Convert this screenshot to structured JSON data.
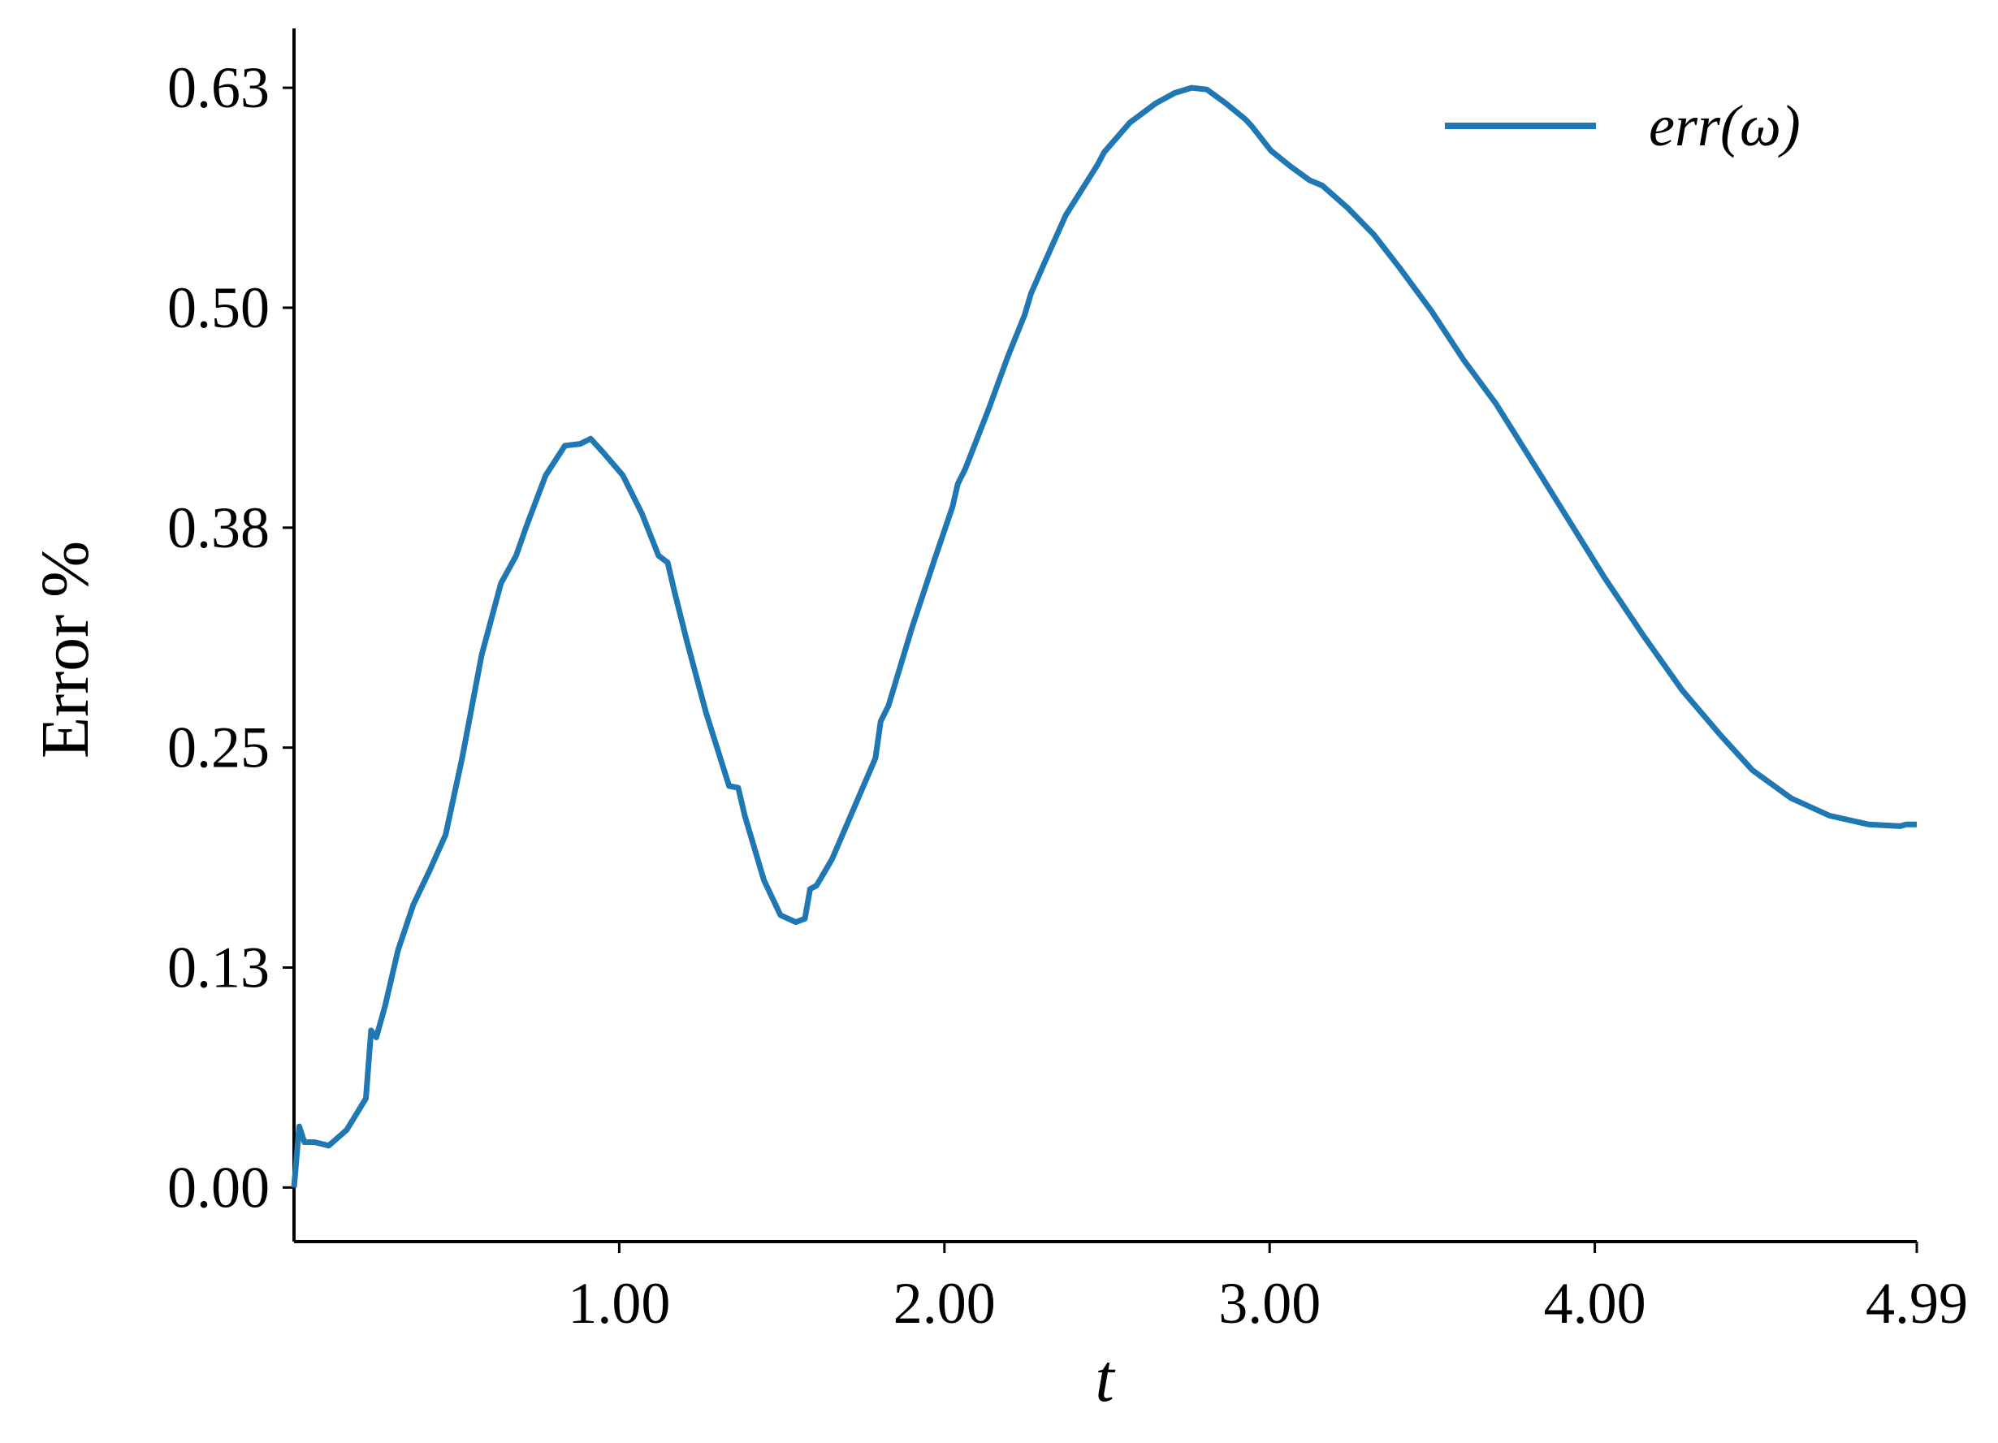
{
  "chart_data": {
    "type": "line",
    "x_label": "t",
    "y_label": "Error %",
    "x": [
      0,
      0.016,
      0.032,
      0.063,
      0.107,
      0.162,
      0.221,
      0.237,
      0.253,
      0.28,
      0.32,
      0.367,
      0.418,
      0.466,
      0.517,
      0.577,
      0.636,
      0.683,
      0.715,
      0.774,
      0.833,
      0.88,
      0.912,
      0.951,
      1.011,
      1.07,
      1.121,
      1.149,
      1.169,
      1.208,
      1.267,
      1.338,
      1.366,
      1.386,
      1.445,
      1.496,
      1.543,
      1.571,
      1.587,
      1.607,
      1.654,
      1.721,
      1.788,
      1.804,
      1.828,
      1.899,
      1.97,
      2.025,
      2.041,
      2.065,
      2.136,
      2.195,
      2.247,
      2.266,
      2.306,
      2.373,
      2.471,
      2.491,
      2.57,
      2.649,
      2.708,
      2.76,
      2.807,
      2.866,
      2.925,
      2.945,
      3.004,
      3.064,
      3.123,
      3.162,
      3.241,
      3.32,
      3.399,
      3.498,
      3.597,
      3.696,
      3.834,
      4.031,
      4.15,
      4.268,
      4.387,
      4.485,
      4.604,
      4.722,
      4.841,
      4.939,
      4.958,
      4.99
    ],
    "series": [
      {
        "name": "err(ω)",
        "color": "#1f77b4",
        "values": [
          0,
          0.035,
          0.026,
          0.026,
          0.024,
          0.033,
          0.051,
          0.09,
          0.086,
          0.104,
          0.136,
          0.162,
          0.182,
          0.202,
          0.246,
          0.305,
          0.346,
          0.362,
          0.379,
          0.408,
          0.425,
          0.426,
          0.429,
          0.421,
          0.408,
          0.386,
          0.362,
          0.358,
          0.342,
          0.313,
          0.272,
          0.23,
          0.229,
          0.213,
          0.176,
          0.156,
          0.152,
          0.154,
          0.171,
          0.173,
          0.188,
          0.217,
          0.246,
          0.267,
          0.276,
          0.32,
          0.36,
          0.39,
          0.403,
          0.412,
          0.446,
          0.476,
          0.5,
          0.512,
          0.529,
          0.557,
          0.586,
          0.593,
          0.61,
          0.621,
          0.627,
          0.63,
          0.629,
          0.621,
          0.612,
          0.608,
          0.594,
          0.585,
          0.577,
          0.574,
          0.561,
          0.546,
          0.527,
          0.502,
          0.474,
          0.449,
          0.408,
          0.349,
          0.316,
          0.285,
          0.259,
          0.239,
          0.223,
          0.213,
          0.208,
          0.207,
          0.208,
          0.208
        ]
      }
    ],
    "xlim": [
      0,
      4.99
    ],
    "ylim": [
      -0.031,
      0.664
    ],
    "xticks": [
      {
        "value": 1,
        "label": "1.00"
      },
      {
        "value": 2,
        "label": "2.00"
      },
      {
        "value": 3,
        "label": "3.00"
      },
      {
        "value": 4,
        "label": "4.00"
      },
      4.99
    ],
    "yticks": [
      {
        "value": 0,
        "label": "0.00"
      },
      {
        "value": 0.126,
        "label": "0.13"
      },
      {
        "value": 0.252,
        "label": "0.25"
      },
      {
        "value": 0.378,
        "label": "0.38"
      },
      {
        "value": 0.504,
        "label": "0.50"
      },
      {
        "value": 0.63,
        "label": "0.63"
      }
    ],
    "grid": false,
    "legend": "upper right"
  }
}
